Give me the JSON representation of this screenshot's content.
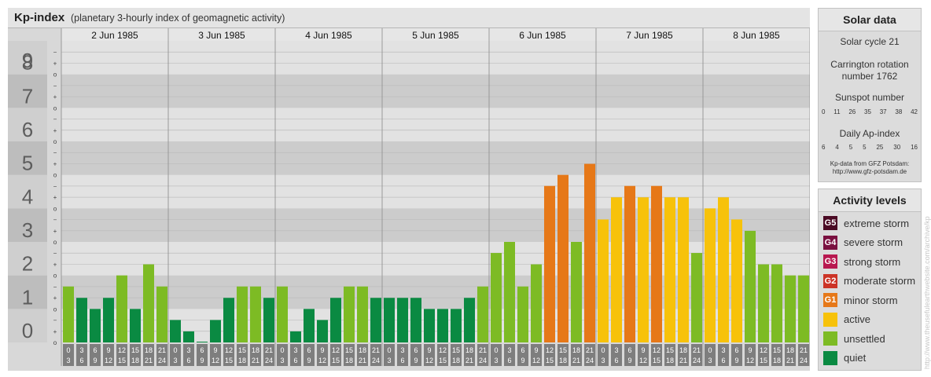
{
  "header": {
    "title": "Kp-index",
    "subtitle": "(planetary 3-hourly index of geomagnetic activity)"
  },
  "chart_data": {
    "type": "bar",
    "title": "Kp-index",
    "subtitle": "(planetary 3-hourly index of geomagnetic activity)",
    "ylim": [
      0,
      9
    ],
    "y_ticks": [
      "0",
      "1",
      "2",
      "3",
      "4",
      "5",
      "6",
      "7",
      "8",
      "9"
    ],
    "sub_ticks": [
      "o",
      "+",
      "−"
    ],
    "days": [
      "2 Jun 1985",
      "3 Jun 1985",
      "4 Jun 1985",
      "5 Jun 1985",
      "6 Jun 1985",
      "7 Jun 1985",
      "8 Jun 1985"
    ],
    "interval_starts": [
      "0",
      "3",
      "6",
      "9",
      "12",
      "15",
      "18",
      "21"
    ],
    "interval_ends": [
      "3",
      "6",
      "9",
      "12",
      "15",
      "18",
      "21",
      "24"
    ],
    "values": [
      [
        1.67,
        1.33,
        1.0,
        1.33,
        2.0,
        1.0,
        2.33,
        1.67
      ],
      [
        0.67,
        0.33,
        0.0,
        0.67,
        1.33,
        1.67,
        1.67,
        1.33
      ],
      [
        1.67,
        0.33,
        1.0,
        0.67,
        1.33,
        1.67,
        1.67,
        1.33
      ],
      [
        1.33,
        1.33,
        1.33,
        1.0,
        1.0,
        1.0,
        1.33,
        1.67
      ],
      [
        2.67,
        3.0,
        1.67,
        2.33,
        4.67,
        5.0,
        3.0,
        5.33
      ],
      [
        3.67,
        4.33,
        4.67,
        4.33,
        4.67,
        4.33,
        4.33,
        2.67
      ],
      [
        4.0,
        4.33,
        3.67,
        3.33,
        2.33,
        2.33,
        2.0,
        2.0
      ]
    ],
    "level_colors": {
      "quiet": "#0a8a42",
      "unsettled": "#7dbb24",
      "active": "#f7c20a",
      "minor_storm": "#e67818",
      "moderate_storm": "#cc3326",
      "strong_storm": "#b81850",
      "severe_storm": "#7a1040",
      "extreme_storm": "#4a0a24"
    }
  },
  "solar": {
    "title": "Solar data",
    "cycle": "Solar cycle 21",
    "carrington_line1": "Carrington rotation",
    "carrington_line2": "number 1762",
    "sunspot_title": "Sunspot number",
    "sunspot_values": [
      "0",
      "11",
      "26",
      "35",
      "37",
      "38",
      "42"
    ],
    "ap_title": "Daily Ap-index",
    "ap_values": [
      "6",
      "4",
      "5",
      "5",
      "25",
      "30",
      "16"
    ],
    "source_line1": "Kp-data from GFZ Potsdam:",
    "source_line2": "http://www.gfz-potsdam.de"
  },
  "levels": {
    "title": "Activity levels",
    "items": [
      {
        "badge": "G5",
        "label": "extreme storm",
        "color": "#4a0a24"
      },
      {
        "badge": "G4",
        "label": "severe storm",
        "color": "#7a1040"
      },
      {
        "badge": "G3",
        "label": "strong storm",
        "color": "#b81850"
      },
      {
        "badge": "G2",
        "label": "moderate storm",
        "color": "#cc3326"
      },
      {
        "badge": "G1",
        "label": "minor storm",
        "color": "#e67818"
      },
      {
        "badge": "",
        "label": "active",
        "color": "#f7c20a"
      },
      {
        "badge": "",
        "label": "unsettled",
        "color": "#7dbb24"
      },
      {
        "badge": "",
        "label": "quiet",
        "color": "#0a8a42"
      }
    ]
  },
  "credit": "http://www.theusefulearthwebsite.com/archive/kp"
}
